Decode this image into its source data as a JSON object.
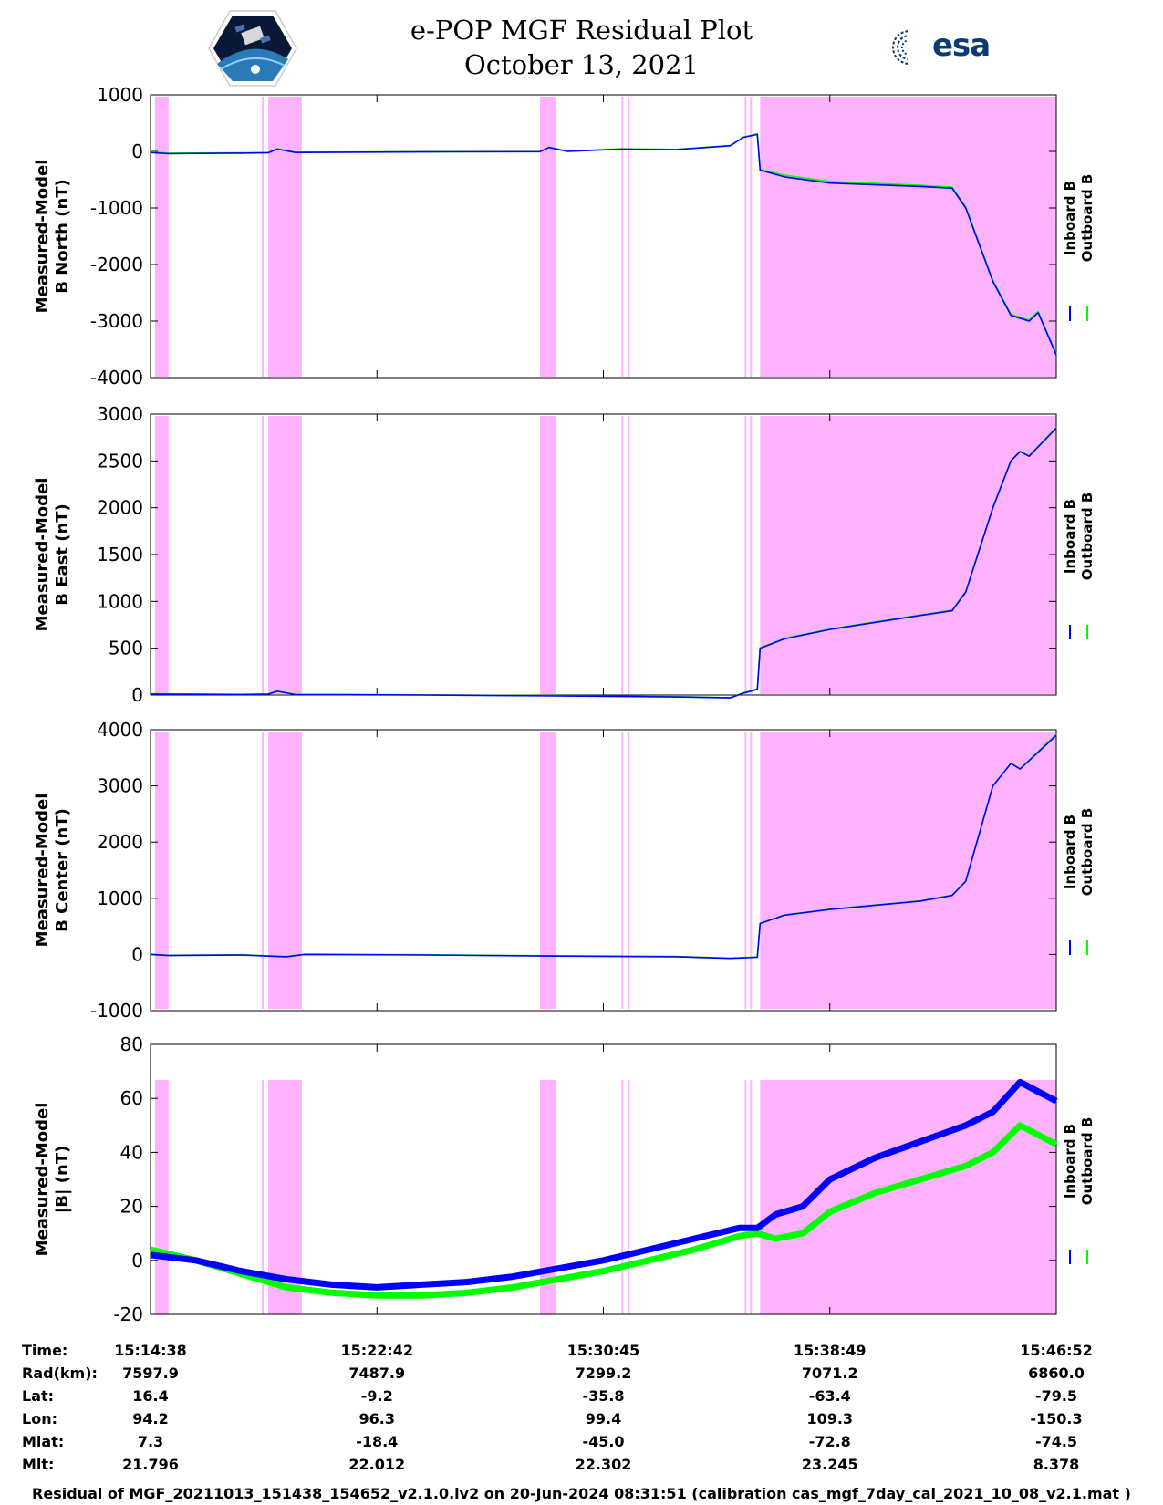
{
  "header": {
    "title_line1": "e-POP MGF Residual Plot",
    "title_line2": "October 13, 2021",
    "esa_logo_text": "esa",
    "left_logo_icon": "cassiope-satellite-logo"
  },
  "colors": {
    "inboard": "#0000ff",
    "outboard": "#00ff00",
    "shade": "#ffb3ff"
  },
  "chart_data": [
    {
      "type": "line",
      "ylabel_line1": "Measured-Model",
      "ylabel_line2": "B North (nT)",
      "ylim": [
        -4000,
        1000
      ],
      "yticks": [
        1000,
        0,
        -1000,
        -2000,
        -3000,
        -4000
      ],
      "legend": [
        "Inboard B",
        "Outboard B"
      ],
      "series": [
        {
          "name": "Inboard B",
          "points": [
            [
              0,
              -20
            ],
            [
              0.02,
              -40
            ],
            [
              0.1,
              -30
            ],
            [
              0.13,
              -25
            ],
            [
              0.14,
              40
            ],
            [
              0.16,
              -20
            ],
            [
              0.3,
              -10
            ],
            [
              0.43,
              -5
            ],
            [
              0.44,
              70
            ],
            [
              0.46,
              0
            ],
            [
              0.52,
              40
            ],
            [
              0.58,
              30
            ],
            [
              0.64,
              100
            ],
            [
              0.655,
              250
            ],
            [
              0.67,
              300
            ],
            [
              0.673,
              -330
            ],
            [
              0.7,
              -450
            ],
            [
              0.75,
              -560
            ],
            [
              0.85,
              -620
            ],
            [
              0.885,
              -650
            ],
            [
              0.9,
              -1000
            ],
            [
              0.93,
              -2300
            ],
            [
              0.95,
              -2900
            ],
            [
              0.97,
              -3000
            ],
            [
              0.98,
              -2850
            ],
            [
              1.0,
              -3600
            ]
          ]
        },
        {
          "name": "Outboard B",
          "points": [
            [
              0,
              -10
            ],
            [
              0.02,
              -30
            ],
            [
              0.1,
              -25
            ],
            [
              0.13,
              -20
            ],
            [
              0.14,
              45
            ],
            [
              0.16,
              -15
            ],
            [
              0.3,
              -5
            ],
            [
              0.43,
              0
            ],
            [
              0.44,
              75
            ],
            [
              0.46,
              5
            ],
            [
              0.52,
              45
            ],
            [
              0.58,
              35
            ],
            [
              0.64,
              105
            ],
            [
              0.655,
              255
            ],
            [
              0.67,
              310
            ],
            [
              0.673,
              -320
            ],
            [
              0.7,
              -420
            ],
            [
              0.75,
              -530
            ],
            [
              0.85,
              -600
            ],
            [
              0.885,
              -630
            ],
            [
              0.9,
              -980
            ],
            [
              0.93,
              -2280
            ],
            [
              0.95,
              -2880
            ],
            [
              0.97,
              -2980
            ],
            [
              0.98,
              -2830
            ],
            [
              1.0,
              -3580
            ]
          ]
        }
      ]
    },
    {
      "type": "line",
      "ylabel_line1": "Measured-Model",
      "ylabel_line2": "B East (nT)",
      "ylim": [
        0,
        3000
      ],
      "yticks": [
        3000,
        2500,
        2000,
        1500,
        1000,
        500,
        0
      ],
      "legend": [
        "Inboard B",
        "Outboard B"
      ],
      "series": [
        {
          "name": "Inboard B",
          "points": [
            [
              0,
              10
            ],
            [
              0.1,
              5
            ],
            [
              0.13,
              10
            ],
            [
              0.14,
              40
            ],
            [
              0.16,
              5
            ],
            [
              0.3,
              0
            ],
            [
              0.45,
              -10
            ],
            [
              0.58,
              -20
            ],
            [
              0.64,
              -30
            ],
            [
              0.655,
              20
            ],
            [
              0.67,
              60
            ],
            [
              0.673,
              500
            ],
            [
              0.7,
              600
            ],
            [
              0.75,
              700
            ],
            [
              0.85,
              850
            ],
            [
              0.885,
              900
            ],
            [
              0.9,
              1100
            ],
            [
              0.93,
              2000
            ],
            [
              0.95,
              2500
            ],
            [
              0.96,
              2600
            ],
            [
              0.97,
              2550
            ],
            [
              1.0,
              2850
            ]
          ]
        },
        {
          "name": "Outboard B",
          "points": [
            [
              0,
              15
            ],
            [
              0.1,
              8
            ],
            [
              0.13,
              12
            ],
            [
              0.14,
              42
            ],
            [
              0.16,
              8
            ],
            [
              0.3,
              2
            ],
            [
              0.45,
              -8
            ],
            [
              0.58,
              -18
            ],
            [
              0.64,
              -28
            ],
            [
              0.655,
              25
            ],
            [
              0.67,
              65
            ],
            [
              0.673,
              505
            ],
            [
              0.7,
              605
            ],
            [
              0.75,
              705
            ],
            [
              0.85,
              855
            ],
            [
              0.885,
              905
            ],
            [
              0.9,
              1105
            ],
            [
              0.93,
              2005
            ],
            [
              0.95,
              2505
            ],
            [
              0.96,
              2605
            ],
            [
              0.97,
              2555
            ],
            [
              1.0,
              2860
            ]
          ]
        }
      ]
    },
    {
      "type": "line",
      "ylabel_line1": "Measured-Model",
      "ylabel_line2": "B Center (nT)",
      "ylim": [
        -1000,
        4000
      ],
      "yticks": [
        4000,
        3000,
        2000,
        1000,
        0,
        -1000
      ],
      "legend": [
        "Inboard B",
        "Outboard B"
      ],
      "series": [
        {
          "name": "Inboard B",
          "points": [
            [
              0,
              0
            ],
            [
              0.02,
              -20
            ],
            [
              0.1,
              -10
            ],
            [
              0.13,
              -30
            ],
            [
              0.15,
              -40
            ],
            [
              0.17,
              0
            ],
            [
              0.3,
              -10
            ],
            [
              0.45,
              -30
            ],
            [
              0.58,
              -40
            ],
            [
              0.64,
              -70
            ],
            [
              0.67,
              -50
            ],
            [
              0.673,
              550
            ],
            [
              0.7,
              700
            ],
            [
              0.75,
              800
            ],
            [
              0.85,
              950
            ],
            [
              0.885,
              1050
            ],
            [
              0.9,
              1300
            ],
            [
              0.93,
              3000
            ],
            [
              0.95,
              3400
            ],
            [
              0.96,
              3300
            ],
            [
              1.0,
              3900
            ]
          ]
        },
        {
          "name": "Outboard B",
          "points": [
            [
              0,
              5
            ],
            [
              0.02,
              -15
            ],
            [
              0.1,
              -5
            ],
            [
              0.13,
              -25
            ],
            [
              0.15,
              -35
            ],
            [
              0.17,
              5
            ],
            [
              0.3,
              -5
            ],
            [
              0.45,
              -25
            ],
            [
              0.58,
              -35
            ],
            [
              0.64,
              -65
            ],
            [
              0.67,
              -45
            ],
            [
              0.673,
              555
            ],
            [
              0.7,
              705
            ],
            [
              0.75,
              805
            ],
            [
              0.85,
              955
            ],
            [
              0.885,
              1055
            ],
            [
              0.9,
              1305
            ],
            [
              0.93,
              3005
            ],
            [
              0.95,
              3405
            ],
            [
              0.96,
              3305
            ],
            [
              1.0,
              3920
            ]
          ]
        }
      ]
    },
    {
      "type": "line",
      "ylabel_line1": "Measured-Model",
      "ylabel_line2": "|B| (nT)",
      "ylim": [
        -20,
        80
      ],
      "yticks": [
        80,
        60,
        40,
        20,
        0,
        -20
      ],
      "legend": [
        "Inboard B",
        "Outboard B"
      ],
      "series": [
        {
          "name": "Inboard B",
          "points": [
            [
              0,
              2
            ],
            [
              0.05,
              0
            ],
            [
              0.1,
              -4
            ],
            [
              0.15,
              -7
            ],
            [
              0.2,
              -9
            ],
            [
              0.25,
              -10
            ],
            [
              0.3,
              -9
            ],
            [
              0.35,
              -8
            ],
            [
              0.4,
              -6
            ],
            [
              0.45,
              -3
            ],
            [
              0.5,
              0
            ],
            [
              0.55,
              4
            ],
            [
              0.6,
              8
            ],
            [
              0.65,
              12
            ],
            [
              0.67,
              12
            ],
            [
              0.69,
              17
            ],
            [
              0.72,
              20
            ],
            [
              0.75,
              30
            ],
            [
              0.8,
              38
            ],
            [
              0.85,
              44
            ],
            [
              0.9,
              50
            ],
            [
              0.93,
              55
            ],
            [
              0.96,
              66
            ],
            [
              1.0,
              59
            ]
          ]
        },
        {
          "name": "Outboard B",
          "points": [
            [
              0,
              4
            ],
            [
              0.05,
              0
            ],
            [
              0.1,
              -5
            ],
            [
              0.15,
              -10
            ],
            [
              0.2,
              -12
            ],
            [
              0.25,
              -13
            ],
            [
              0.3,
              -13
            ],
            [
              0.35,
              -12
            ],
            [
              0.4,
              -10
            ],
            [
              0.45,
              -7
            ],
            [
              0.5,
              -4
            ],
            [
              0.55,
              0
            ],
            [
              0.6,
              4
            ],
            [
              0.65,
              9
            ],
            [
              0.67,
              10
            ],
            [
              0.69,
              8
            ],
            [
              0.72,
              10
            ],
            [
              0.75,
              18
            ],
            [
              0.8,
              25
            ],
            [
              0.85,
              30
            ],
            [
              0.9,
              35
            ],
            [
              0.93,
              40
            ],
            [
              0.96,
              50
            ],
            [
              1.0,
              43
            ]
          ]
        }
      ]
    }
  ],
  "shaded_intervals": [
    [
      0.005,
      0.02
    ],
    [
      0.123,
      0.125
    ],
    [
      0.13,
      0.167
    ],
    [
      0.43,
      0.447
    ],
    [
      0.52,
      0.522
    ],
    [
      0.527,
      0.529
    ],
    [
      0.656,
      0.658
    ],
    [
      0.662,
      0.664
    ],
    [
      0.673,
      1.0
    ]
  ],
  "x_ticks": [
    0,
    0.25,
    0.5,
    0.75,
    1.0
  ],
  "info_table": {
    "labels": [
      "Time:",
      "Rad(km):",
      "Lat:",
      "Lon:",
      "Mlat:",
      "Mlt:"
    ],
    "columns": [
      [
        "15:14:38",
        "7597.9",
        "16.4",
        "94.2",
        "7.3",
        "21.796"
      ],
      [
        "15:22:42",
        "7487.9",
        "-9.2",
        "96.3",
        "-18.4",
        "22.012"
      ],
      [
        "15:30:45",
        "7299.2",
        "-35.8",
        "99.4",
        "-45.0",
        "22.302"
      ],
      [
        "15:38:49",
        "7071.2",
        "-63.4",
        "109.3",
        "-72.8",
        "23.245"
      ],
      [
        "15:46:52",
        "6860.0",
        "-79.5",
        "-150.3",
        "-74.5",
        "8.378"
      ]
    ]
  },
  "footer": "Residual of MGF_20211013_151438_154652_v2.1.0.lv2 on 20-Jun-2024 08:31:51 (calibration cas_mgf_7day_cal_2021_10_08_v2.1.mat )"
}
